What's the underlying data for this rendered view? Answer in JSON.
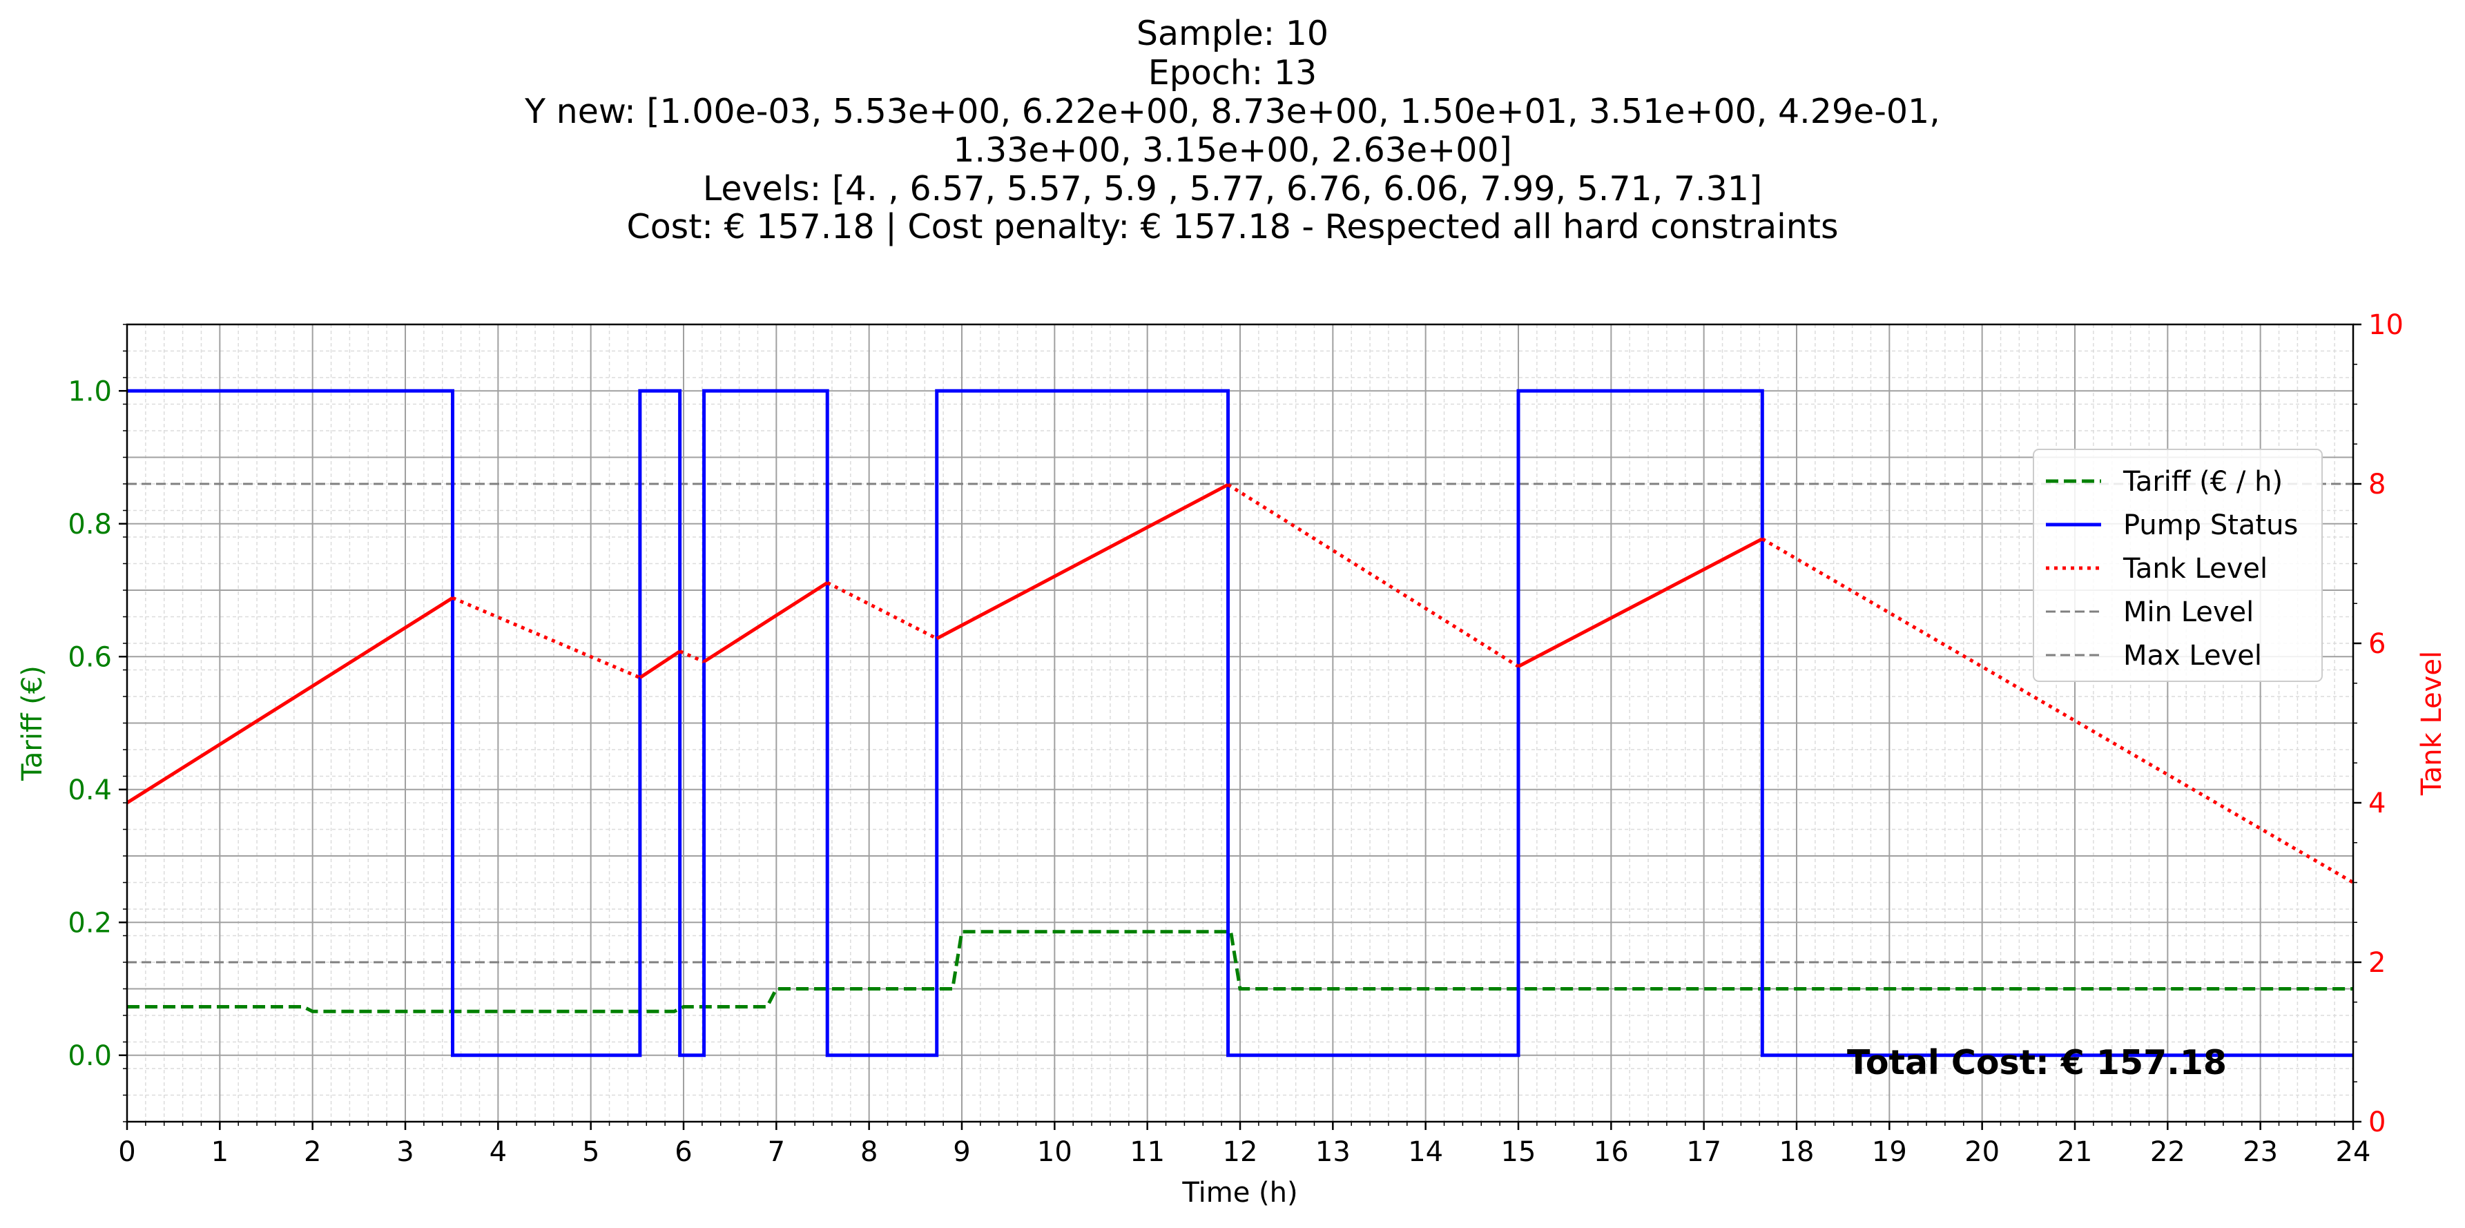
{
  "chart_data": {
    "type": "line",
    "title_lines": [
      "Sample: 10",
      "Epoch: 13",
      "Y new: [1.00e-03, 5.53e+00, 6.22e+00, 8.73e+00, 1.50e+01, 3.51e+00, 4.29e-01,",
      "1.33e+00, 3.15e+00, 2.63e+00]",
      "Levels: [4.  , 6.57, 5.57, 5.9 , 5.77, 6.76, 6.06, 7.99, 5.71, 7.31]",
      "Cost: € 157.18 | Cost penalty: € 157.18 - Respected all hard constraints"
    ],
    "xlabel": "Time (h)",
    "ylabel_left": "Tariff (€)",
    "ylabel_right": "Tank Level",
    "xlim": [
      0,
      24
    ],
    "ylim_left": [
      -0.1,
      1.1
    ],
    "ylim_right": [
      0,
      10
    ],
    "x_ticks": [
      "0",
      "1",
      "2",
      "3",
      "4",
      "5",
      "6",
      "7",
      "8",
      "9",
      "10",
      "11",
      "12",
      "13",
      "14",
      "15",
      "16",
      "17",
      "18",
      "19",
      "20",
      "21",
      "22",
      "23",
      "24"
    ],
    "y_left_ticks": [
      "0.0",
      "0.2",
      "0.4",
      "0.6",
      "0.8",
      "1.0"
    ],
    "y_right_ticks": [
      "0",
      "2",
      "4",
      "6",
      "8",
      "10"
    ],
    "grid": true,
    "legend_position": "right",
    "annotation": "Total Cost: € 157.18",
    "colors": {
      "tariff": "#008000",
      "pump": "#0000ff",
      "tank": "#ff0000",
      "limits": "#808080"
    },
    "series": [
      {
        "name": "Tariff (€ / h)",
        "axis": "left",
        "style": "dashed",
        "x": [
          0,
          1.9,
          2.0,
          5.9,
          6.0,
          6.9,
          7.0,
          8.9,
          9.0,
          11.9,
          12.0,
          24
        ],
        "y": [
          0.073,
          0.073,
          0.066,
          0.066,
          0.073,
          0.073,
          0.1,
          0.1,
          0.186,
          0.186,
          0.1,
          0.1
        ]
      },
      {
        "name": "Pump Status",
        "axis": "left",
        "style": "solid",
        "x": [
          0,
          3.51,
          3.51,
          5.53,
          5.53,
          5.96,
          5.96,
          6.22,
          6.22,
          7.55,
          7.55,
          8.73,
          8.73,
          11.87,
          11.87,
          15.0,
          15.0,
          17.63,
          17.63,
          24
        ],
        "y": [
          1,
          1,
          0,
          0,
          1,
          1,
          0,
          0,
          1,
          1,
          0,
          0,
          1,
          1,
          0,
          0,
          1,
          1,
          0,
          0
        ]
      },
      {
        "name": "Tank Level",
        "axis": "right",
        "style": "mixed",
        "points": [
          [
            0,
            4.0
          ],
          [
            3.51,
            6.57
          ],
          [
            5.53,
            5.57
          ],
          [
            5.96,
            5.9
          ],
          [
            6.22,
            5.77
          ],
          [
            7.55,
            6.76
          ],
          [
            8.73,
            6.06
          ],
          [
            11.87,
            7.99
          ],
          [
            15.0,
            5.71
          ],
          [
            17.63,
            7.31
          ],
          [
            24,
            3.0
          ]
        ],
        "segment_styles": [
          "solid",
          "dotted",
          "solid",
          "dotted",
          "solid",
          "dotted",
          "solid",
          "dotted",
          "solid",
          "dotted"
        ]
      },
      {
        "name": "Min Level",
        "axis": "right",
        "style": "dashed",
        "value": 2
      },
      {
        "name": "Max Level",
        "axis": "right",
        "style": "dashed",
        "value": 8
      }
    ]
  }
}
